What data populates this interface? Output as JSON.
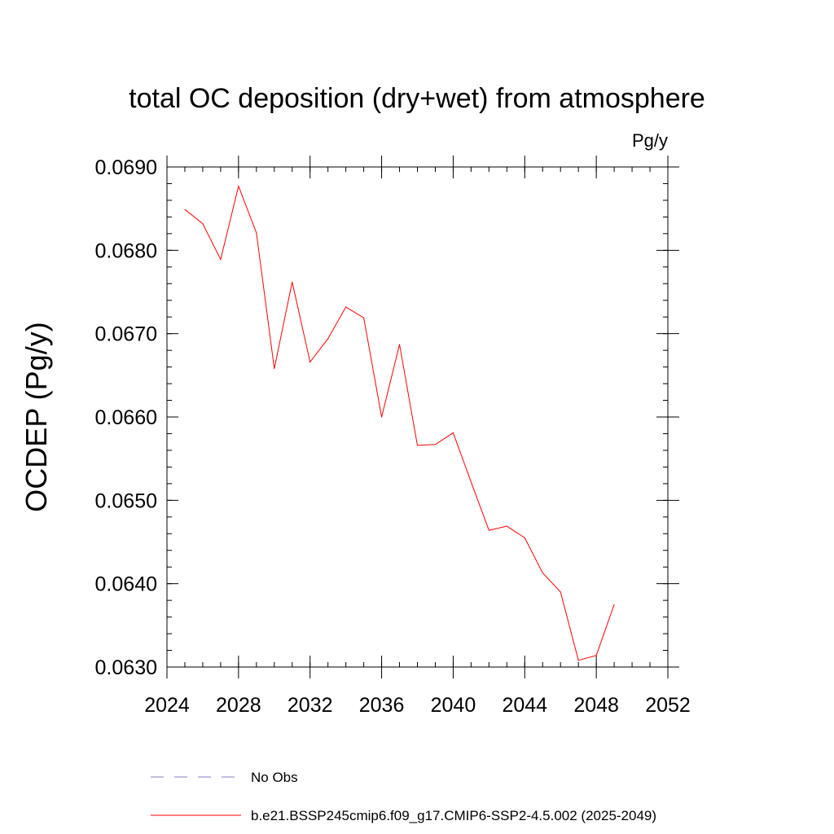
{
  "chart_data": {
    "type": "line",
    "title": "total OC deposition (dry+wet) from atmosphere",
    "units_label": "Pg/y",
    "xlabel": "",
    "ylabel": "OCDEP  (Pg/y)",
    "xlim": [
      2024,
      2052
    ],
    "ylim": [
      0.063,
      0.069
    ],
    "x_ticks": [
      2024,
      2028,
      2032,
      2036,
      2040,
      2044,
      2048,
      2052
    ],
    "x_tick_labels": [
      "2024",
      "2028",
      "2032",
      "2036",
      "2040",
      "2044",
      "2048",
      "2052"
    ],
    "x_minor_step": 1,
    "y_ticks": [
      0.063,
      0.064,
      0.065,
      0.066,
      0.067,
      0.068,
      0.069
    ],
    "y_tick_labels": [
      "0.0630",
      "0.0640",
      "0.0650",
      "0.0660",
      "0.0670",
      "0.0680",
      "0.0690"
    ],
    "y_minor_step": 0.0002,
    "grid": false,
    "legend_position": "bottom",
    "series": [
      {
        "name": "b.e21.BSSP245cmip6.f09_g17.CMIP6-SSP2-4.5.002 (2025-2049)",
        "color": "#ff0000",
        "dash": "solid",
        "x": [
          2025,
          2026,
          2027,
          2028,
          2029,
          2030,
          2031,
          2032,
          2033,
          2034,
          2035,
          2036,
          2037,
          2038,
          2039,
          2040,
          2041,
          2042,
          2043,
          2044,
          2045,
          2046,
          2047,
          2048,
          2049
        ],
        "y": [
          0.06849,
          0.06832,
          0.06789,
          0.06877,
          0.06821,
          0.06658,
          0.06762,
          0.06666,
          0.06694,
          0.06732,
          0.06719,
          0.066,
          0.06687,
          0.06566,
          0.06567,
          0.06581,
          0.06522,
          0.06464,
          0.06469,
          0.06455,
          0.06413,
          0.0639,
          0.06308,
          0.06314,
          0.06375
        ]
      }
    ],
    "legend": [
      {
        "label": "No Obs",
        "color": "#8080c0",
        "dash": "dashed"
      },
      {
        "label": "b.e21.BSSP245cmip6.f09_g17.CMIP6-SSP2-4.5.002 (2025-2049)",
        "color": "#ff0000",
        "dash": "solid"
      }
    ]
  }
}
